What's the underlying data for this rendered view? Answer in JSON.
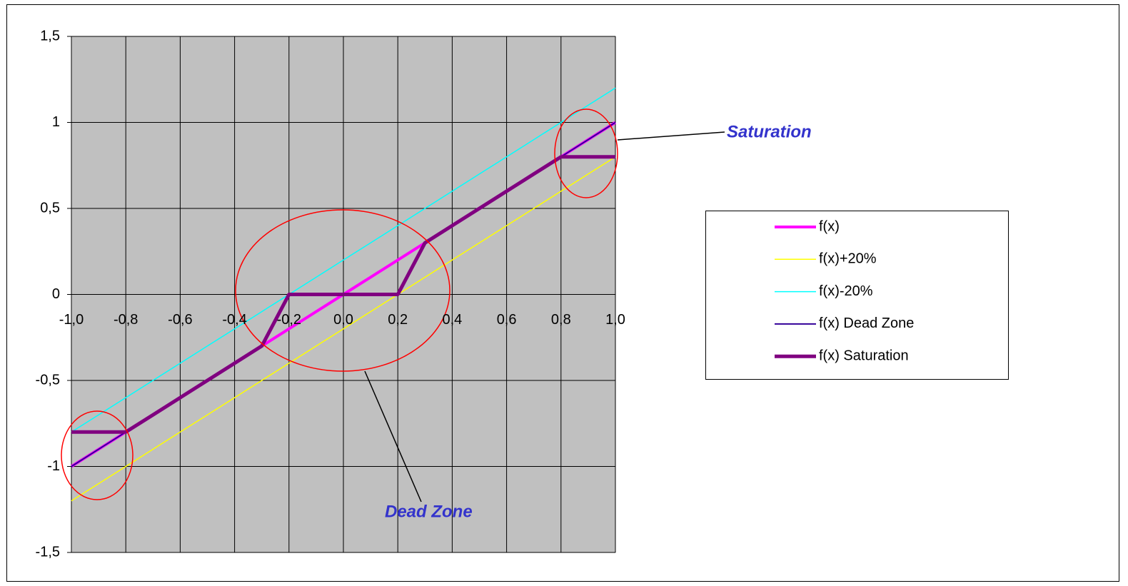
{
  "chart_data": {
    "type": "line",
    "x": [
      -1.0,
      -0.9,
      -0.8,
      -0.7,
      -0.6,
      -0.5,
      -0.4,
      -0.3,
      -0.2,
      -0.1,
      0.0,
      0.1,
      0.2,
      0.3,
      0.4,
      0.5,
      0.6,
      0.7,
      0.8,
      0.9,
      1.0
    ],
    "series": [
      {
        "name": "f(x)",
        "color": "#ff00ff",
        "linewidth": 4,
        "values": [
          -1.0,
          -0.9,
          -0.8,
          -0.7,
          -0.6,
          -0.5,
          -0.4,
          -0.3,
          -0.2,
          -0.1,
          0.0,
          0.1,
          0.2,
          0.3,
          0.4,
          0.5,
          0.6,
          0.7,
          0.8,
          0.9,
          1.0
        ]
      },
      {
        "name": "f(x)+20%",
        "color": "#ffff00",
        "linewidth": 1.5,
        "values": [
          -1.2,
          -1.1,
          -1.0,
          -0.9,
          -0.8,
          -0.7,
          -0.6,
          -0.5,
          -0.4,
          -0.3,
          -0.2,
          -0.1,
          0.0,
          0.1,
          0.2,
          0.3,
          0.4,
          0.5,
          0.6,
          0.7,
          0.8
        ]
      },
      {
        "name": "f(x)-20%",
        "color": "#00ffff",
        "linewidth": 1.5,
        "values": [
          -0.8,
          -0.7,
          -0.6,
          -0.5,
          -0.4,
          -0.3,
          -0.2,
          -0.1,
          0.0,
          0.1,
          0.2,
          0.3,
          0.4,
          0.5,
          0.6,
          0.7,
          0.8,
          0.9,
          1.0,
          1.1,
          1.2
        ]
      },
      {
        "name": "f(x) Dead Zone",
        "color": "#330099",
        "linewidth": 2,
        "values": [
          -1.0,
          -0.9,
          -0.8,
          -0.7,
          -0.6,
          -0.5,
          -0.4,
          -0.3,
          0.0,
          0.0,
          0.0,
          0.0,
          0.0,
          0.3,
          0.4,
          0.5,
          0.6,
          0.7,
          0.8,
          0.9,
          1.0
        ]
      },
      {
        "name": "f(x) Saturation",
        "color": "#800080",
        "linewidth": 5,
        "values": [
          -0.8,
          -0.8,
          -0.8,
          -0.7,
          -0.6,
          -0.5,
          -0.4,
          -0.3,
          0.0,
          0.0,
          0.0,
          0.0,
          0.0,
          0.3,
          0.4,
          0.5,
          0.6,
          0.7,
          0.8,
          0.8,
          0.8
        ]
      }
    ],
    "xlim": [
      -1.0,
      1.0
    ],
    "xticks": [
      {
        "value": -1.0,
        "label": "-1,0"
      },
      {
        "value": -0.8,
        "label": "-0,8"
      },
      {
        "value": -0.6,
        "label": "-0,6"
      },
      {
        "value": -0.4,
        "label": "-0,4"
      },
      {
        "value": -0.2,
        "label": "-0,2"
      },
      {
        "value": 0.0,
        "label": "0,0"
      },
      {
        "value": 0.2,
        "label": "0,2"
      },
      {
        "value": 0.4,
        "label": "0,4"
      },
      {
        "value": 0.6,
        "label": "0,6"
      },
      {
        "value": 0.8,
        "label": "0,8"
      },
      {
        "value": 1.0,
        "label": "1,0"
      }
    ],
    "ylim": [
      -1.5,
      1.5
    ],
    "yticks": [
      {
        "value": -1.5,
        "label": "-1,5"
      },
      -1,
      {
        "value": -0.5,
        "label": "-0,5"
      },
      0,
      {
        "value": 0.5,
        "label": "0,5"
      },
      1,
      {
        "value": 1.5,
        "label": "1,5"
      }
    ],
    "grid": true,
    "legend": "right",
    "annotations": [
      {
        "text": "Saturation"
      },
      {
        "text": "Dead Zone"
      }
    ]
  }
}
